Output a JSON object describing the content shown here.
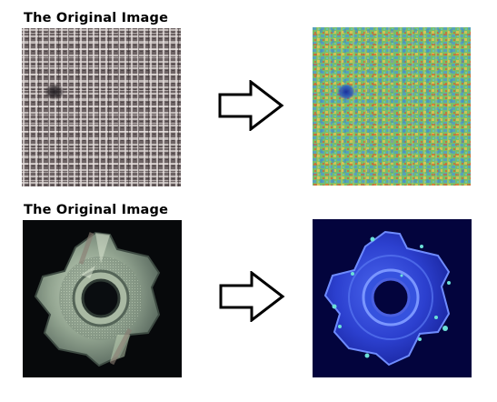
{
  "rows": [
    {
      "title": "The Original Image",
      "input": {
        "content": "fabric-texture",
        "colors": {
          "base": "#7b7170",
          "thread": "#d8d2cf",
          "dark": "#3a3033",
          "defect": "#242026"
        }
      },
      "output": {
        "content": "fabric-heatmap",
        "colors": {
          "base": "#7ec26a",
          "hot": "#e35a2c",
          "warm": "#f0c24a",
          "cool": "#3a8fd0",
          "defect": "#1f3fa5"
        }
      },
      "arrow": {
        "icon": "right-arrow-icon"
      }
    },
    {
      "title": "The Original Image",
      "input": {
        "content": "metal-nut",
        "colors": {
          "background": "#080a0c",
          "metal": "#8fa18e",
          "highlight": "#cfe0c4",
          "edge": "#44524a"
        }
      },
      "output": {
        "content": "nut-heatmap",
        "colors": {
          "background": "#04053f",
          "body": "#3048d8",
          "glow": "#64d6e0",
          "edge": "#6f8cff"
        }
      },
      "arrow": {
        "icon": "right-arrow-icon"
      }
    }
  ]
}
